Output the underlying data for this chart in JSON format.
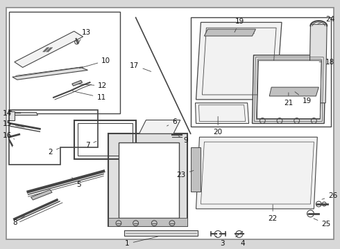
{
  "bg_color": "#d8d8d8",
  "border_color": "#555555",
  "line_color": "#444444",
  "fill_light": "#f2f2f2",
  "fill_mid": "#e0e0e0",
  "fill_dark": "#c0c0c0",
  "text_color": "#111111",
  "label_fontsize": 7.5,
  "fig_width": 4.9,
  "fig_height": 3.6,
  "dpi": 100
}
